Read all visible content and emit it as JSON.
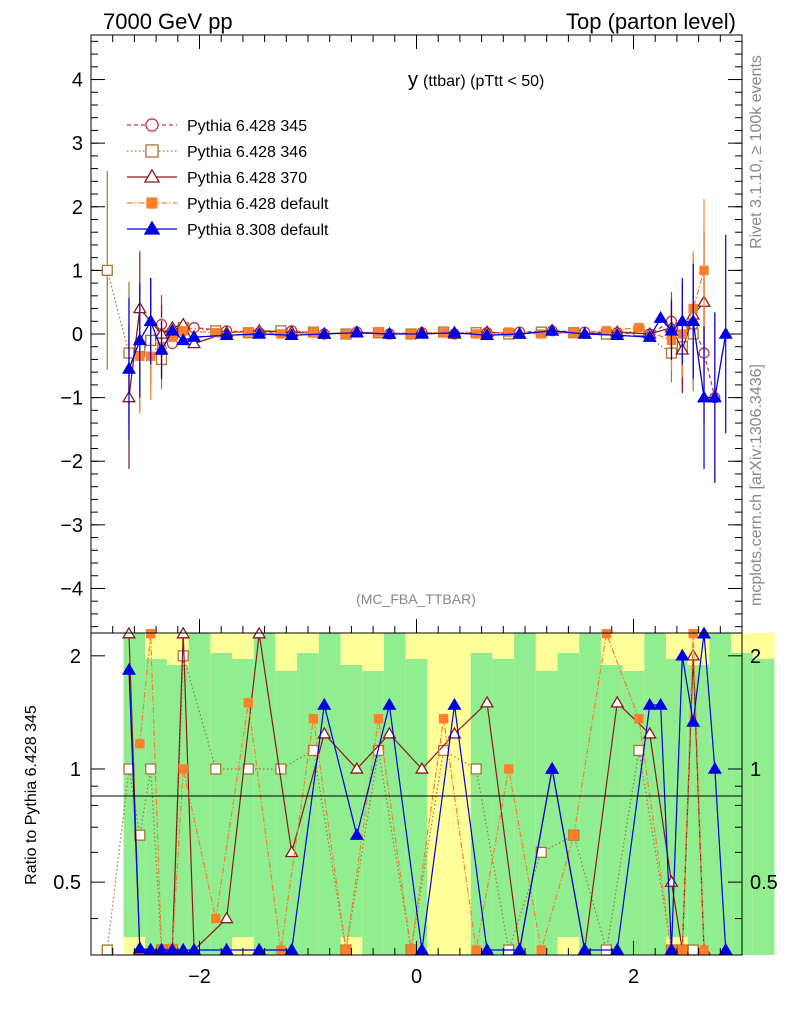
{
  "header": {
    "left": "7000 GeV pp",
    "right": "Top (parton level)"
  },
  "side": {
    "rivet": "Rivet 3.1.10, ≥ 100k events",
    "mcplots": "mcplots.cern.ch [arXiv:1306.3436]"
  },
  "chart_data": [
    {
      "type": "line",
      "title": "y",
      "title_small": "(ttbar)  (pTtt < 50)",
      "analysis": "(MC_FBA_TTBAR)",
      "xlabel": "",
      "ylabel": "",
      "xlim": [
        -3.0,
        3.0
      ],
      "ylim": [
        -4.7,
        4.7
      ],
      "yticks": [
        -4,
        -3,
        -2,
        -1,
        0,
        1,
        2,
        3,
        4
      ],
      "ytick_labels": [
        "−4",
        "−3",
        "−2",
        "−1",
        "0",
        "1",
        "2",
        "3",
        "4"
      ],
      "legend_position": "top-left",
      "series": [
        {
          "name": "Pythia 6.428 345",
          "color": "#c0334d",
          "marker": "circle-open",
          "dash": "4,3",
          "x": [
            -2.55,
            -2.45,
            -2.35,
            -2.25,
            -2.15,
            -2.05,
            -1.75,
            -1.45,
            -1.15,
            -0.85,
            -0.55,
            -0.25,
            0.05,
            0.35,
            0.65,
            0.95,
            1.25,
            1.55,
            1.85,
            2.15,
            2.35,
            2.45,
            2.55,
            2.65,
            2.75
          ],
          "y": [
            -0.3,
            -0.1,
            0.15,
            -0.15,
            0.05,
            0.1,
            0.05,
            0.02,
            0.05,
            0.0,
            0.03,
            0.0,
            0.02,
            0.0,
            0.02,
            0.03,
            0.05,
            0.03,
            0.02,
            0.0,
            0.2,
            0.1,
            0.15,
            -0.3,
            -1.0
          ]
        },
        {
          "name": "Pythia 6.428 346",
          "color": "#a87630",
          "marker": "square-open",
          "dash": "1.5,2.5",
          "x": [
            -2.85,
            -2.65,
            -2.55,
            -2.45,
            -2.35,
            -2.25,
            -2.15,
            -1.85,
            -1.55,
            -1.25,
            -0.95,
            -0.65,
            -0.35,
            -0.05,
            0.25,
            0.55,
            0.85,
            1.15,
            1.45,
            1.75,
            2.05,
            2.35,
            2.45,
            2.55
          ],
          "y": [
            1.0,
            -0.3,
            -0.2,
            -0.1,
            -0.4,
            0.0,
            0.1,
            0.05,
            0.02,
            0.05,
            0.03,
            0.0,
            0.02,
            0.0,
            0.03,
            0.02,
            0.0,
            0.03,
            0.02,
            0.0,
            0.05,
            -0.3,
            -0.2,
            0.0
          ]
        },
        {
          "name": "Pythia 6.428 370",
          "color": "#8b1a1a",
          "marker": "triangle-open",
          "dash": "",
          "x": [
            -2.65,
            -2.55,
            -2.45,
            -2.35,
            -2.25,
            -2.15,
            -2.05,
            -1.75,
            -1.45,
            -1.15,
            -0.85,
            -0.55,
            -0.25,
            0.05,
            0.35,
            0.65,
            0.95,
            1.25,
            1.55,
            1.85,
            2.15,
            2.35,
            2.45,
            2.55,
            2.65
          ],
          "y": [
            -1.0,
            0.4,
            0.2,
            0.0,
            0.1,
            0.15,
            -0.15,
            0.02,
            0.05,
            0.03,
            0.0,
            0.03,
            0.0,
            0.02,
            0.0,
            0.03,
            0.0,
            0.05,
            0.0,
            0.03,
            0.0,
            0.1,
            -0.25,
            0.3,
            0.5
          ]
        },
        {
          "name": "Pythia 6.428 default",
          "color": "#ff7f2a",
          "marker": "square-filled",
          "dash": "6,2,1.5,2",
          "x": [
            -2.55,
            -2.45,
            -2.35,
            -2.25,
            -2.15,
            -1.85,
            -1.55,
            -1.25,
            -0.95,
            -0.65,
            -0.35,
            -0.05,
            0.25,
            0.55,
            0.85,
            1.15,
            1.45,
            1.75,
            2.05,
            2.35,
            2.45,
            2.55,
            2.65
          ],
          "y": [
            -0.35,
            -0.35,
            -0.2,
            -0.05,
            0.05,
            0.02,
            0.03,
            0.0,
            0.02,
            0.0,
            0.03,
            0.0,
            0.02,
            0.0,
            0.03,
            0.0,
            0.02,
            0.05,
            0.1,
            -0.1,
            0.0,
            0.4,
            1.0
          ]
        },
        {
          "name": "Pythia 8.308 default",
          "color": "#0000e0",
          "marker": "triangle-filled",
          "dash": "",
          "x": [
            -2.65,
            -2.55,
            -2.45,
            -2.35,
            -2.25,
            -2.15,
            -2.05,
            -1.75,
            -1.45,
            -1.15,
            -0.85,
            -0.55,
            -0.25,
            0.05,
            0.35,
            0.65,
            0.95,
            1.25,
            1.55,
            1.85,
            2.15,
            2.25,
            2.35,
            2.45,
            2.55,
            2.65,
            2.75,
            2.85
          ],
          "y": [
            -0.55,
            -0.1,
            0.2,
            -0.25,
            0.05,
            -0.1,
            -0.05,
            -0.02,
            0.0,
            -0.02,
            0.0,
            0.02,
            0.0,
            0.0,
            0.02,
            -0.02,
            0.0,
            0.05,
            0.0,
            -0.02,
            -0.05,
            0.25,
            0.05,
            0.2,
            0.2,
            -1.0,
            -1.0,
            0.0
          ]
        }
      ]
    },
    {
      "type": "line",
      "ylabel": "Ratio to Pythia 6.428 345",
      "xlim": [
        -3.0,
        3.0
      ],
      "ylim": [
        0.32,
        2.3
      ],
      "yticks": [
        0.5,
        1,
        2
      ],
      "ytick_labels": [
        "0.5",
        "1",
        "2"
      ],
      "xticks": [
        -2,
        0,
        2
      ],
      "xtick_labels": [
        "−2",
        "0",
        "2"
      ],
      "band_colors": [
        "#90ee90",
        "#ffff99"
      ],
      "reference_line": 1
    }
  ]
}
